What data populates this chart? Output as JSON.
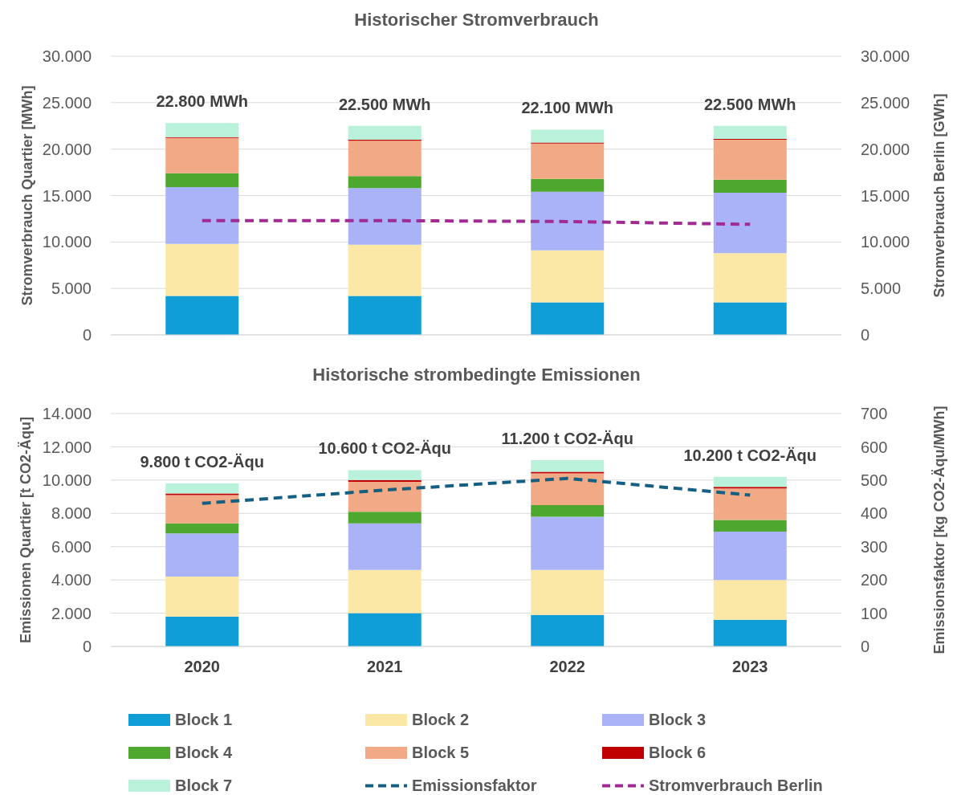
{
  "chart_data": [
    {
      "type": "bar",
      "title": "Historischer Stromverbrauch",
      "ylabel": "Stromverbrauch Quartier [MWh]",
      "y2label": "Stromverbrauch Berlin [GWh]",
      "categories": [
        "2020",
        "2021",
        "2022",
        "2023"
      ],
      "stacked": true,
      "series": [
        {
          "color": "#0f9ed5",
          "values": [
            4200,
            4200,
            3500,
            3500
          ]
        },
        {
          "color": "#fbe7a6",
          "values": [
            5600,
            5500,
            5600,
            5300
          ]
        },
        {
          "color": "#aab3f8",
          "values": [
            6100,
            6100,
            6300,
            6500
          ]
        },
        {
          "color": "#4ea72e",
          "values": [
            1500,
            1300,
            1400,
            1400
          ]
        },
        {
          "color": "#f1aa85",
          "values": [
            3800,
            3800,
            3800,
            4300
          ]
        },
        {
          "color": "#c00000",
          "values": [
            100,
            100,
            100,
            100
          ]
        },
        {
          "color": "#baf1db",
          "values": [
            1500,
            1500,
            1400,
            1400
          ]
        },
        {
          "name": "Stromverbrauch Berlin",
          "type": "line",
          "axis": "y2",
          "color": "#a02b93",
          "values": [
            12300,
            12300,
            12200,
            11900
          ]
        }
      ],
      "ylim": [
        0,
        30000
      ],
      "yticks": [
        0,
        {
          "value": 5000,
          "label": "5.000"
        },
        {
          "value": 10000,
          "label": "10.000"
        },
        {
          "value": 15000,
          "label": "15.000"
        },
        {
          "value": 20000,
          "label": "20.000"
        },
        {
          "value": 25000,
          "label": "25.000"
        },
        {
          "value": 30000,
          "label": "30.000"
        }
      ],
      "y2lim": [
        0,
        30000
      ],
      "y2ticks": [
        0,
        {
          "value": 5000,
          "label": "5.000"
        },
        {
          "value": 10000,
          "label": "10.000"
        },
        {
          "value": 15000,
          "label": "15.000"
        },
        {
          "value": 20000,
          "label": "20.000"
        },
        {
          "value": 25000,
          "label": "25.000"
        },
        {
          "value": 30000,
          "label": "30.000"
        }
      ],
      "totals": [
        "22.800 MWh",
        "22.500 MWh",
        "22.100 MWh",
        "22.500 MWh"
      ],
      "grid": "y",
      "legend": "bottom",
      "line_style": "dashed",
      "tick_labels": "y"
    },
    {
      "type": "bar",
      "title": "Historische strombedingte Emissionen",
      "ylabel": "Emissionen Quartier [t CO2-Äqu]",
      "y2label": "Emissionsfaktor [kg CO2-Äqu/MWh]",
      "categories": [
        "2020",
        "2021",
        "2022",
        "2023"
      ],
      "stacked": true,
      "series": [
        {
          "name": "Block 1",
          "color": "#0f9ed5",
          "values": [
            1800,
            2000,
            1900,
            1600
          ]
        },
        {
          "name": "Block 2",
          "color": "#fbe7a6",
          "values": [
            2400,
            2600,
            2700,
            2400
          ]
        },
        {
          "name": "Block 3",
          "color": "#aab3f8",
          "values": [
            2600,
            2800,
            3200,
            2900
          ]
        },
        {
          "name": "Block 4",
          "color": "#4ea72e",
          "values": [
            600,
            700,
            700,
            700
          ]
        },
        {
          "name": "Block 5",
          "color": "#f1aa85",
          "values": [
            1700,
            1800,
            1900,
            1900
          ]
        },
        {
          "name": "Block 6",
          "color": "#c00000",
          "values": [
            100,
            100,
            100,
            100
          ]
        },
        {
          "name": "Block 7",
          "color": "#baf1db",
          "values": [
            600,
            600,
            700,
            600
          ]
        },
        {
          "name": "Emissionsfaktor",
          "type": "line",
          "axis": "y2",
          "color": "#156082",
          "values": [
            430,
            470,
            505,
            455
          ]
        }
      ],
      "ylim": [
        0,
        14000
      ],
      "yticks": [
        0,
        {
          "value": 2000,
          "label": "2.000"
        },
        {
          "value": 4000,
          "label": "4.000"
        },
        {
          "value": 6000,
          "label": "6.000"
        },
        {
          "value": 8000,
          "label": "8.000"
        },
        {
          "value": 10000,
          "label": "10.000"
        },
        {
          "value": 12000,
          "label": "12.000"
        },
        {
          "value": 14000,
          "label": "14.000"
        }
      ],
      "y2lim": [
        0,
        700
      ],
      "y2ticks": [
        0,
        100,
        200,
        300,
        400,
        500,
        600,
        700
      ],
      "totals": [
        "9.800 t CO2-Äqu",
        "10.600 t CO2-Äqu",
        "11.200 t CO2-Äqu",
        "10.200 t CO2-Äqu"
      ],
      "grid": "y",
      "legend": "bottom",
      "line_style": "dashed"
    }
  ]
}
